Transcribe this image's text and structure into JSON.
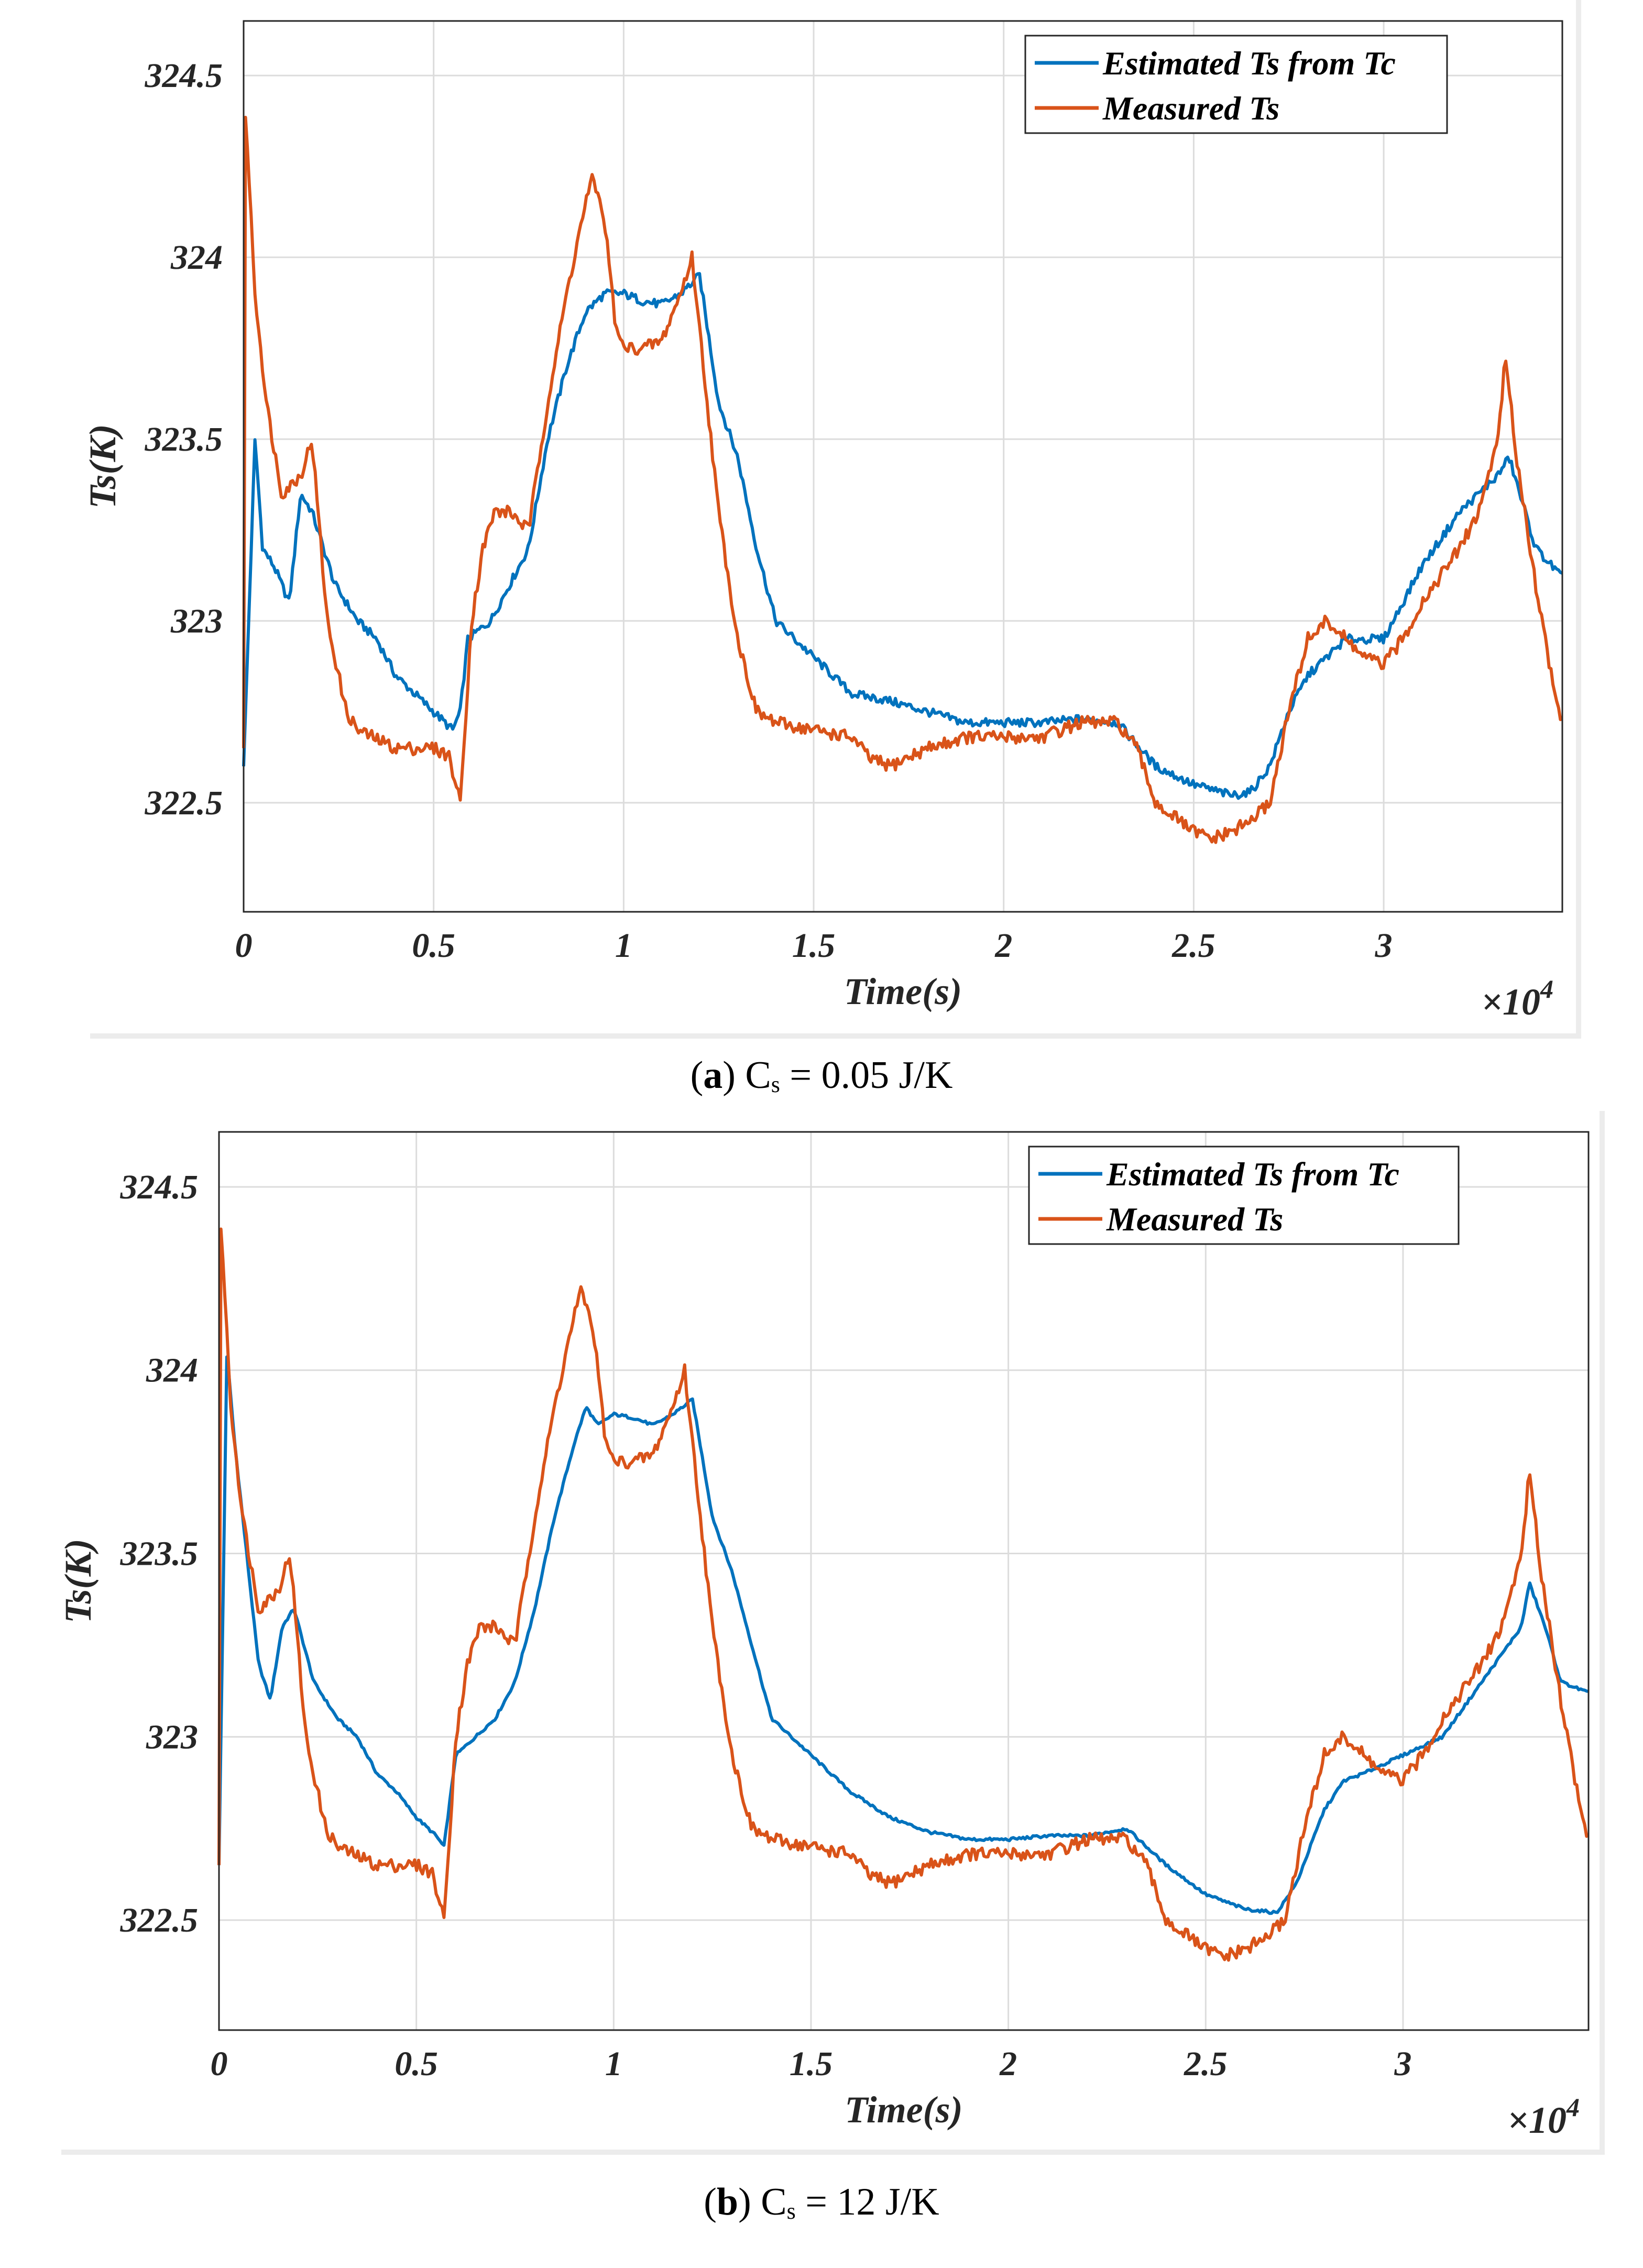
{
  "captions": [
    {
      "letter": "a",
      "prefix": "(",
      "suffix": ") C",
      "sub": "s",
      "rest": " = 0.05 J/K"
    },
    {
      "letter": "b",
      "prefix": "(",
      "suffix": ") C",
      "sub": "s",
      "rest": " = 12 J/K"
    }
  ],
  "chart_data": [
    {
      "type": "line",
      "title": "",
      "xlabel": "Time(s)",
      "ylabel": "Ts(K)",
      "x_multiplier_label": "×10",
      "x_multiplier_exp": "4",
      "xlim": [
        0,
        34700
      ],
      "ylim": [
        322.2,
        324.65
      ],
      "xticks": [
        0,
        5000,
        10000,
        15000,
        20000,
        25000,
        30000
      ],
      "xtick_labels": [
        "0",
        "0.5",
        "1",
        "1.5",
        "2",
        "2.5",
        "3"
      ],
      "yticks": [
        322.5,
        323,
        323.5,
        324,
        324.5
      ],
      "ytick_labels": [
        "322.5",
        "323",
        "323.5",
        "324",
        "324.5"
      ],
      "grid": true,
      "legend_position": "top-right",
      "series": [
        {
          "name": "Estimated Ts from Tc",
          "color": "#0072BD",
          "x": [
            0,
            300,
            500,
            800,
            1200,
            1500,
            1800,
            2400,
            3000,
            3500,
            4000,
            4500,
            5000,
            5500,
            5700,
            5900,
            6500,
            7000,
            7500,
            8000,
            8500,
            9000,
            9500,
            10000,
            10500,
            11000,
            11500,
            12000,
            12500,
            13000,
            13500,
            14000,
            15000,
            16000,
            17000,
            18000,
            19000,
            20000,
            21000,
            22000,
            23000,
            24000,
            25000,
            26000,
            26500,
            27000,
            27500,
            28000,
            28500,
            29000,
            30000,
            31000,
            32000,
            33000,
            33300,
            34000,
            34700
          ],
          "values": [
            322.6,
            323.5,
            323.2,
            323.15,
            323.05,
            323.35,
            323.3,
            323.1,
            323.0,
            322.95,
            322.85,
            322.8,
            322.75,
            322.7,
            322.75,
            322.95,
            323.0,
            323.1,
            323.2,
            323.5,
            323.7,
            323.85,
            323.9,
            323.9,
            323.88,
            323.87,
            323.9,
            323.95,
            323.6,
            323.45,
            323.2,
            323.0,
            322.9,
            322.8,
            322.78,
            322.75,
            322.72,
            322.72,
            322.72,
            322.73,
            322.72,
            322.6,
            322.55,
            322.52,
            322.53,
            322.6,
            322.75,
            322.85,
            322.9,
            322.95,
            322.95,
            323.15,
            323.3,
            323.4,
            323.45,
            323.2,
            323.12
          ]
        },
        {
          "name": "Measured Ts",
          "color": "#D95319",
          "x": [
            0,
            50,
            300,
            600,
            1000,
            1500,
            1800,
            2200,
            2700,
            3000,
            4000,
            5000,
            5400,
            5700,
            6000,
            6300,
            6600,
            7000,
            7500,
            8000,
            8500,
            9000,
            9200,
            9500,
            9800,
            10000,
            10500,
            11000,
            11500,
            11800,
            12000,
            12500,
            13000,
            13500,
            14000,
            15000,
            16000,
            16500,
            17000,
            18000,
            19000,
            20000,
            21000,
            22000,
            23000,
            23500,
            24000,
            25000,
            25500,
            26000,
            26500,
            27000,
            27500,
            28000,
            28500,
            29000,
            29500,
            30000,
            30500,
            31000,
            32000,
            32500,
            33000,
            33200,
            33500,
            34000,
            34500,
            34700
          ],
          "values": [
            322.65,
            324.4,
            323.9,
            323.6,
            323.35,
            323.4,
            323.5,
            323.0,
            322.75,
            322.7,
            322.65,
            322.65,
            322.63,
            322.5,
            323.0,
            323.2,
            323.3,
            323.3,
            323.25,
            323.6,
            323.9,
            324.15,
            324.22,
            324.1,
            323.8,
            323.75,
            323.75,
            323.77,
            323.9,
            324.0,
            323.8,
            323.3,
            322.95,
            322.75,
            322.72,
            322.7,
            322.68,
            322.62,
            322.6,
            322.65,
            322.68,
            322.68,
            322.68,
            322.72,
            322.72,
            322.65,
            322.5,
            322.42,
            322.4,
            322.42,
            322.45,
            322.5,
            322.75,
            322.95,
            323.0,
            322.95,
            322.9,
            322.88,
            322.95,
            323.05,
            323.2,
            323.3,
            323.5,
            323.72,
            323.45,
            323.1,
            322.8,
            322.72
          ]
        }
      ]
    },
    {
      "type": "line",
      "title": "",
      "xlabel": "Time(s)",
      "ylabel": "Ts(K)",
      "x_multiplier_label": "×10",
      "x_multiplier_exp": "4",
      "xlim": [
        0,
        34700
      ],
      "ylim": [
        322.2,
        324.65
      ],
      "xticks": [
        0,
        5000,
        10000,
        15000,
        20000,
        25000,
        30000
      ],
      "xtick_labels": [
        "0",
        "0.5",
        "1",
        "1.5",
        "2",
        "2.5",
        "3"
      ],
      "yticks": [
        322.5,
        323,
        323.5,
        324,
        324.5
      ],
      "ytick_labels": [
        "322.5",
        "323",
        "323.5",
        "324",
        "324.5"
      ],
      "grid": true,
      "legend_position": "top-right",
      "series": [
        {
          "name": "Estimated Ts from Tc",
          "color": "#0072BD",
          "x": [
            0,
            200,
            400,
            700,
            1000,
            1300,
            1600,
            1900,
            2400,
            3000,
            3500,
            4000,
            4500,
            5000,
            5500,
            5700,
            6000,
            6500,
            7000,
            7500,
            8000,
            8500,
            9000,
            9300,
            9600,
            10000,
            10500,
            11000,
            11500,
            12000,
            12500,
            13000,
            13500,
            14000,
            15000,
            16000,
            17000,
            18000,
            19000,
            20000,
            21000,
            22000,
            23000,
            24000,
            25000,
            26000,
            26800,
            27300,
            28000,
            28500,
            29000,
            30000,
            31000,
            32000,
            33000,
            33200,
            33600,
            34000,
            34700
          ],
          "values": [
            322.65,
            324.05,
            323.8,
            323.5,
            323.2,
            323.1,
            323.3,
            323.35,
            323.15,
            323.05,
            323.0,
            322.9,
            322.85,
            322.78,
            322.73,
            322.7,
            322.95,
            323.0,
            323.05,
            323.15,
            323.35,
            323.6,
            323.8,
            323.9,
            323.85,
            323.88,
            323.87,
            323.85,
            323.88,
            323.92,
            323.6,
            323.45,
            323.25,
            323.05,
            322.95,
            322.85,
            322.78,
            322.74,
            322.72,
            322.72,
            322.73,
            322.73,
            322.75,
            322.65,
            322.57,
            322.53,
            322.52,
            322.6,
            322.8,
            322.88,
            322.9,
            322.95,
            323.0,
            323.15,
            323.3,
            323.42,
            323.3,
            323.15,
            323.12
          ]
        },
        {
          "name": "Measured Ts",
          "color": "#D95319",
          "x": [
            0,
            50,
            300,
            600,
            1000,
            1500,
            1800,
            2200,
            2700,
            3000,
            4000,
            5000,
            5400,
            5700,
            6000,
            6300,
            6600,
            7000,
            7500,
            8000,
            8500,
            9000,
            9200,
            9500,
            9800,
            10000,
            10500,
            11000,
            11500,
            11800,
            12000,
            12500,
            13000,
            13500,
            14000,
            15000,
            16000,
            16500,
            17000,
            18000,
            19000,
            20000,
            21000,
            22000,
            23000,
            23500,
            24000,
            25000,
            25500,
            26000,
            26500,
            27000,
            27500,
            28000,
            28500,
            29000,
            29500,
            30000,
            30500,
            31000,
            32000,
            32500,
            33000,
            33200,
            33500,
            34000,
            34500,
            34700
          ],
          "values": [
            322.65,
            324.4,
            323.9,
            323.6,
            323.35,
            323.4,
            323.5,
            323.0,
            322.75,
            322.7,
            322.65,
            322.65,
            322.63,
            322.5,
            323.0,
            323.2,
            323.3,
            323.3,
            323.25,
            323.6,
            323.9,
            324.15,
            324.22,
            324.1,
            323.8,
            323.75,
            323.75,
            323.77,
            323.9,
            324.0,
            323.8,
            323.3,
            322.95,
            322.75,
            322.72,
            322.7,
            322.68,
            322.62,
            322.6,
            322.65,
            322.68,
            322.68,
            322.68,
            322.72,
            322.72,
            322.65,
            322.5,
            322.42,
            322.4,
            322.42,
            322.45,
            322.5,
            322.75,
            322.95,
            323.0,
            322.95,
            322.9,
            322.88,
            322.95,
            323.05,
            323.2,
            323.3,
            323.5,
            323.72,
            323.45,
            323.1,
            322.8,
            322.72
          ]
        }
      ]
    }
  ]
}
